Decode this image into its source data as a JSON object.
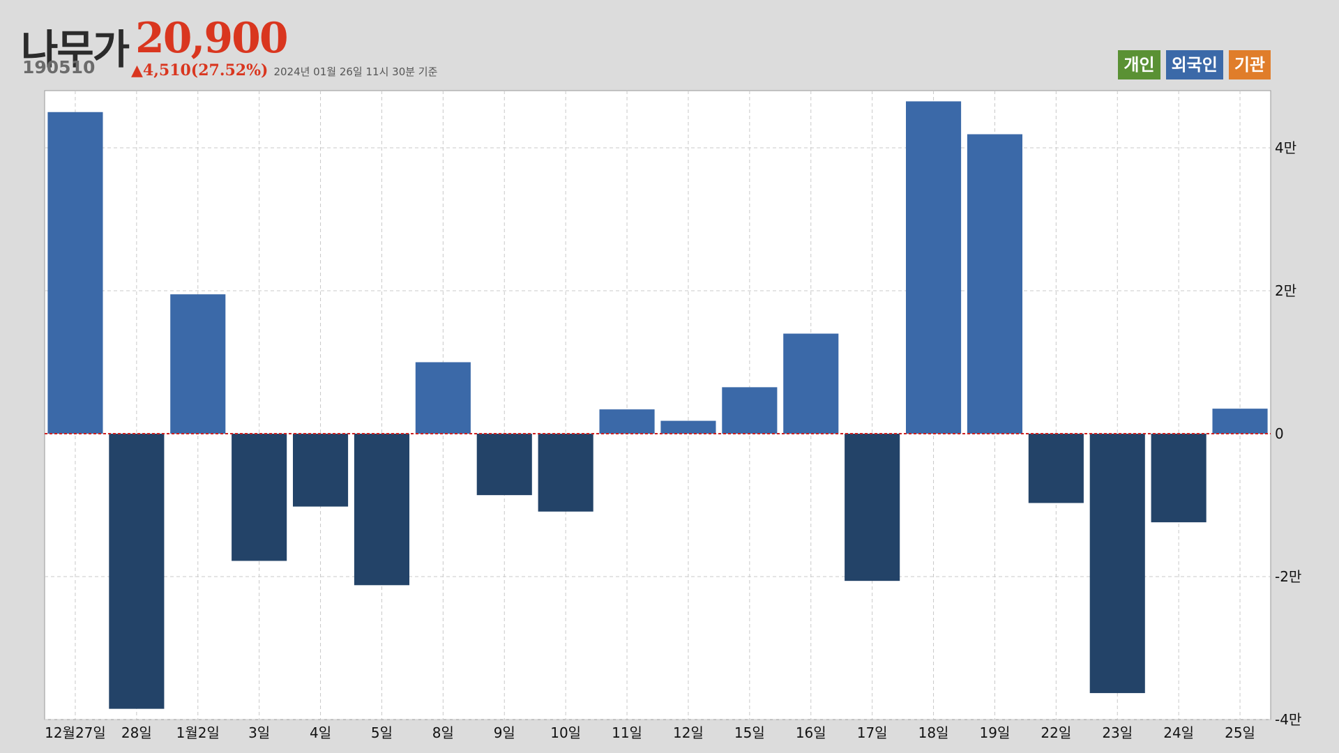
{
  "header": {
    "name": "나무가",
    "price": "20,900",
    "code": "190510",
    "change_arrow": "▲",
    "change": "4,510(27.52%)",
    "timestamp": "2024년 01월 26일 11시 30분 기준"
  },
  "legend": [
    {
      "label": "개인",
      "color": "#5a9134"
    },
    {
      "label": "외국인",
      "color": "#3b69a8"
    },
    {
      "label": "기관",
      "color": "#e07d2a"
    }
  ],
  "colors": {
    "positive_bar": "#3b69a8",
    "negative_bar": "#234368",
    "zero_line": "#cc2020",
    "plot_background": "#ffffff",
    "page_background": "#dcdcdc"
  },
  "chart_data": {
    "type": "bar",
    "series": [
      {
        "name": "외국인",
        "values": [
          45000,
          -38500,
          19500,
          -17800,
          -10200,
          -21200,
          10000,
          -8600,
          -10900,
          3400,
          1800,
          6500,
          14000,
          -20600,
          46500,
          41900,
          -9700,
          -36300,
          -12400,
          3500
        ]
      }
    ],
    "categories": [
      "12월27일",
      "28일",
      "1월2일",
      "3일",
      "4일",
      "5일",
      "8일",
      "9일",
      "10일",
      "11일",
      "12일",
      "15일",
      "16일",
      "17일",
      "18일",
      "19일",
      "22일",
      "23일",
      "24일",
      "25일"
    ],
    "ylim": [
      -40000,
      48000
    ],
    "y_ticks": [
      {
        "value": 40000,
        "label": "4만"
      },
      {
        "value": 20000,
        "label": "2만"
      },
      {
        "value": 0,
        "label": "0"
      },
      {
        "value": -20000,
        "label": "-2만"
      },
      {
        "value": -40000,
        "label": "-4만"
      }
    ],
    "grid": true,
    "y_axis_side": "right"
  }
}
